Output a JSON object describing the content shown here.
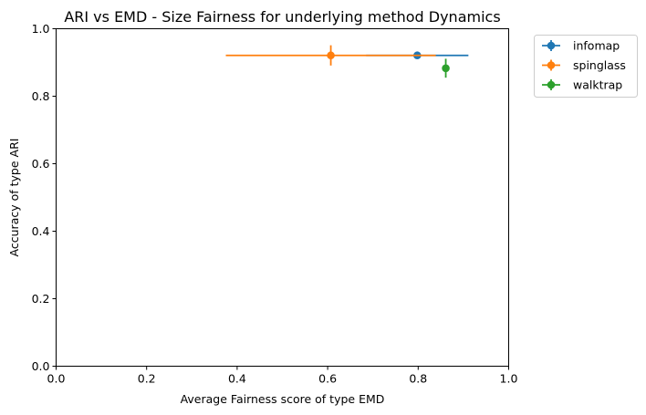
{
  "chart_data": {
    "type": "scatter",
    "title": "ARI vs EMD - Size Fairness for underlying method Dynamics",
    "xlabel": "Average Fairness score of type EMD",
    "ylabel": "Accuracy of type ARI",
    "xlim": [
      0.0,
      1.0
    ],
    "ylim": [
      0.0,
      1.0
    ],
    "xticks": [
      "0.0",
      "0.2",
      "0.4",
      "0.6",
      "0.8",
      "1.0"
    ],
    "yticks": [
      "0.0",
      "0.2",
      "0.4",
      "0.6",
      "0.8",
      "1.0"
    ],
    "grid": false,
    "legend_position": "outside-top-right",
    "series": [
      {
        "name": "infomap",
        "color": "#1f77b4",
        "x": 0.798,
        "y": 0.921,
        "xerr": 0.113,
        "yerr": 0.01
      },
      {
        "name": "spinglass",
        "color": "#ff7f0e",
        "x": 0.607,
        "y": 0.921,
        "xerr": 0.232,
        "yerr": 0.03
      },
      {
        "name": "walktrap",
        "color": "#2ca02c",
        "x": 0.861,
        "y": 0.883,
        "xerr": 0.003,
        "yerr": 0.028
      }
    ]
  }
}
